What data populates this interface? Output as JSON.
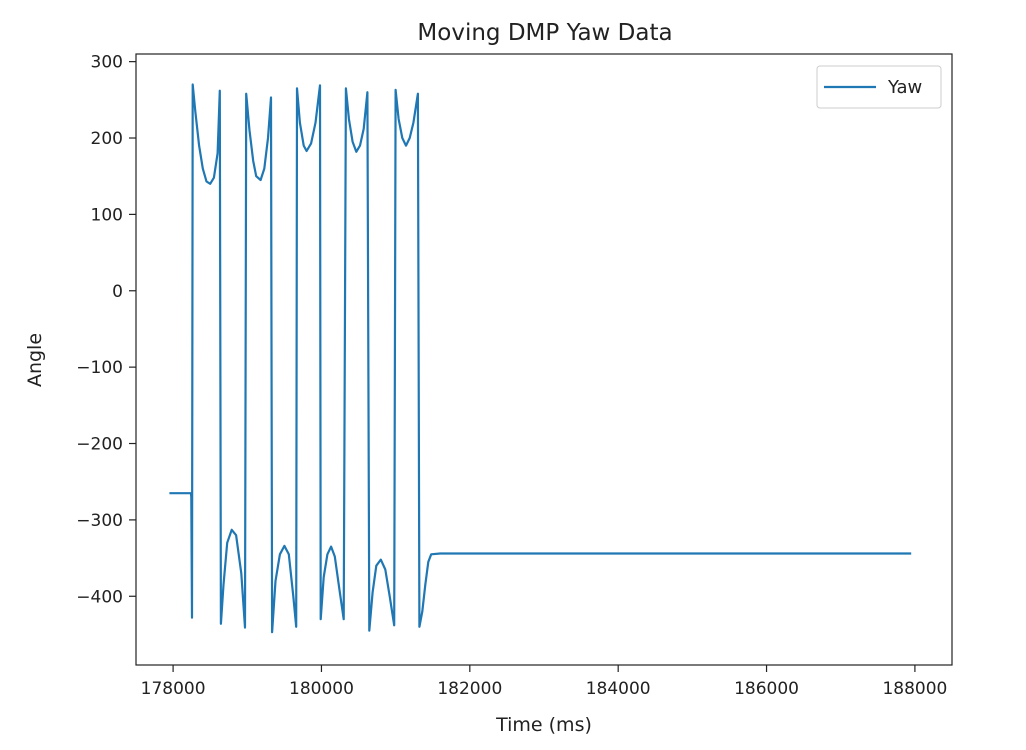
{
  "chart_data": {
    "type": "line",
    "title": "Moving DMP Yaw Data",
    "xlabel": "Time (ms)",
    "ylabel": "Angle",
    "xlim": [
      177500,
      188500
    ],
    "ylim": [
      -490,
      310
    ],
    "xticks": [
      178000,
      180000,
      182000,
      184000,
      186000,
      188000
    ],
    "xtick_labels": [
      "178000",
      "180000",
      "182000",
      "184000",
      "186000",
      "188000"
    ],
    "yticks": [
      300,
      200,
      100,
      0,
      -100,
      -200,
      -300,
      -400
    ],
    "ytick_labels": [
      "300",
      "200",
      "100",
      "0",
      "−100",
      "−200",
      "−300",
      "−400"
    ],
    "grid": false,
    "legend": "top-right",
    "series": [
      {
        "name": "Yaw",
        "color": "#1f77b4",
        "points": [
          [
            177950,
            -265
          ],
          [
            178240,
            -265
          ],
          [
            178245,
            -270
          ],
          [
            178255,
            -428
          ],
          [
            178265,
            270
          ],
          [
            178300,
            235
          ],
          [
            178350,
            190
          ],
          [
            178400,
            160
          ],
          [
            178450,
            143
          ],
          [
            178500,
            140
          ],
          [
            178550,
            148
          ],
          [
            178600,
            180
          ],
          [
            178630,
            262
          ],
          [
            178645,
            -436
          ],
          [
            178680,
            -385
          ],
          [
            178730,
            -330
          ],
          [
            178790,
            -313
          ],
          [
            178850,
            -320
          ],
          [
            178920,
            -370
          ],
          [
            178970,
            -441
          ],
          [
            178985,
            258
          ],
          [
            179030,
            210
          ],
          [
            179080,
            170
          ],
          [
            179120,
            150
          ],
          [
            179180,
            145
          ],
          [
            179230,
            160
          ],
          [
            179280,
            200
          ],
          [
            179320,
            253
          ],
          [
            179335,
            -447
          ],
          [
            179380,
            -380
          ],
          [
            179440,
            -345
          ],
          [
            179500,
            -334
          ],
          [
            179560,
            -345
          ],
          [
            179620,
            -400
          ],
          [
            179660,
            -440
          ],
          [
            179670,
            265
          ],
          [
            179710,
            220
          ],
          [
            179760,
            190
          ],
          [
            179800,
            183
          ],
          [
            179860,
            193
          ],
          [
            179920,
            220
          ],
          [
            179980,
            269
          ],
          [
            179990,
            -430
          ],
          [
            180030,
            -375
          ],
          [
            180080,
            -345
          ],
          [
            180130,
            -335
          ],
          [
            180180,
            -348
          ],
          [
            180240,
            -390
          ],
          [
            180300,
            -430
          ],
          [
            180330,
            265
          ],
          [
            180370,
            225
          ],
          [
            180420,
            195
          ],
          [
            180470,
            182
          ],
          [
            180520,
            190
          ],
          [
            180570,
            212
          ],
          [
            180620,
            260
          ],
          [
            180645,
            -445
          ],
          [
            180690,
            -395
          ],
          [
            180740,
            -360
          ],
          [
            180800,
            -352
          ],
          [
            180860,
            -365
          ],
          [
            180920,
            -400
          ],
          [
            180980,
            -438
          ],
          [
            181000,
            263
          ],
          [
            181040,
            225
          ],
          [
            181090,
            200
          ],
          [
            181140,
            190
          ],
          [
            181190,
            200
          ],
          [
            181240,
            220
          ],
          [
            181300,
            258
          ],
          [
            181320,
            -440
          ],
          [
            181360,
            -420
          ],
          [
            181400,
            -385
          ],
          [
            181440,
            -355
          ],
          [
            181480,
            -345
          ],
          [
            181600,
            -344
          ],
          [
            183000,
            -344
          ],
          [
            185000,
            -344
          ],
          [
            187000,
            -344
          ],
          [
            187950,
            -344
          ]
        ]
      }
    ]
  }
}
